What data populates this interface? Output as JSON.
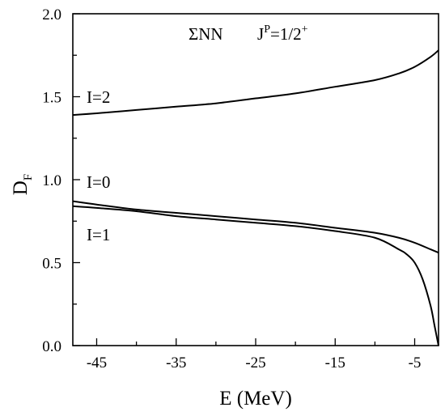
{
  "chart_data": {
    "type": "line",
    "title": "",
    "xlabel": "E (MeV)",
    "ylabel": {
      "main": "D",
      "sub": "F"
    },
    "xlim": [
      -48,
      -2
    ],
    "ylim": [
      0.0,
      2.0
    ],
    "x_ticks": [
      -45,
      -35,
      -25,
      -15,
      -5
    ],
    "x_tick_labels": [
      "-45",
      "-35",
      "-25",
      "-15",
      "-5"
    ],
    "y_ticks": [
      0.0,
      0.5,
      1.0,
      1.5,
      2.0
    ],
    "y_tick_labels": [
      "0.0",
      "0.5",
      "1.0",
      "1.5",
      "2.0"
    ],
    "grid": false,
    "annotation": {
      "system": "ΣNN",
      "jp_prefix": "J",
      "jp_sup": "P",
      "jp_value": "=1/2",
      "jp_sign": "+"
    },
    "series": [
      {
        "name": "I=2",
        "x": [
          -48,
          -45,
          -40,
          -35,
          -30,
          -25,
          -20,
          -15,
          -10,
          -7,
          -5,
          -3,
          -2
        ],
        "y": [
          1.39,
          1.4,
          1.42,
          1.44,
          1.46,
          1.49,
          1.52,
          1.56,
          1.6,
          1.64,
          1.68,
          1.74,
          1.78
        ]
      },
      {
        "name": "I=0",
        "x": [
          -48,
          -45,
          -40,
          -35,
          -30,
          -25,
          -20,
          -15,
          -10,
          -7,
          -5,
          -3,
          -2
        ],
        "y": [
          0.87,
          0.85,
          0.82,
          0.8,
          0.78,
          0.76,
          0.74,
          0.71,
          0.68,
          0.65,
          0.62,
          0.58,
          0.56
        ]
      },
      {
        "name": "I=1",
        "x": [
          -48,
          -45,
          -40,
          -35,
          -30,
          -25,
          -20,
          -15,
          -10,
          -7,
          -6,
          -5,
          -4,
          -3,
          -2.5,
          -2
        ],
        "y": [
          0.84,
          0.83,
          0.81,
          0.78,
          0.76,
          0.74,
          0.72,
          0.69,
          0.65,
          0.58,
          0.55,
          0.5,
          0.4,
          0.24,
          0.12,
          0.0
        ]
      }
    ]
  }
}
